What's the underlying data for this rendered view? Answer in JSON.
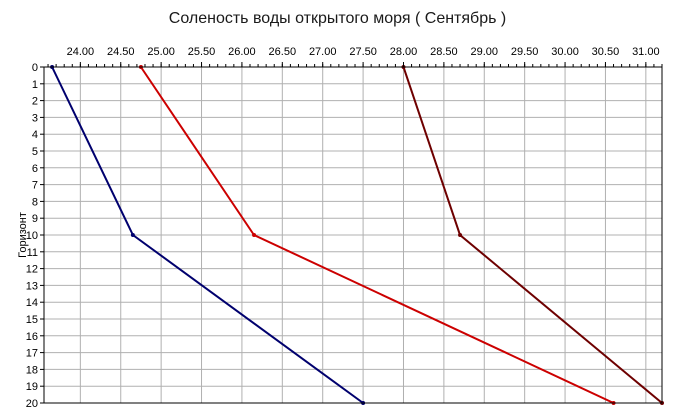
{
  "chart_data": {
    "type": "line",
    "title": "Соленость воды открытого моря    ( Сентябрь )",
    "xlabel": "",
    "ylabel": "Горизонт",
    "xlim": [
      23.55,
      31.2
    ],
    "ylim": [
      0,
      20
    ],
    "y_inverted": true,
    "x_axis_position": "top",
    "x_ticks": [
      "24.00",
      "24.50",
      "25.00",
      "25.50",
      "26.00",
      "26.50",
      "27.00",
      "27.50",
      "28.00",
      "28.50",
      "29.00",
      "29.50",
      "30.00",
      "30.50",
      "31.00"
    ],
    "y_ticks": [
      "0",
      "1",
      "2",
      "3",
      "4",
      "5",
      "6",
      "7",
      "8",
      "9",
      "10",
      "11",
      "12",
      "13",
      "14",
      "15",
      "16",
      "17",
      "18",
      "19",
      "20"
    ],
    "grid": true,
    "legend": "none",
    "series": [
      {
        "color": "#00006e",
        "points": [
          [
            23.65,
            0
          ],
          [
            24.65,
            10
          ],
          [
            27.5,
            20
          ]
        ]
      },
      {
        "color": "#cc0000",
        "points": [
          [
            24.75,
            0
          ],
          [
            26.15,
            10
          ],
          [
            30.6,
            20
          ]
        ]
      },
      {
        "color": "#6e0000",
        "points": [
          [
            28.0,
            0
          ],
          [
            28.7,
            10
          ],
          [
            31.2,
            20
          ]
        ]
      }
    ]
  }
}
